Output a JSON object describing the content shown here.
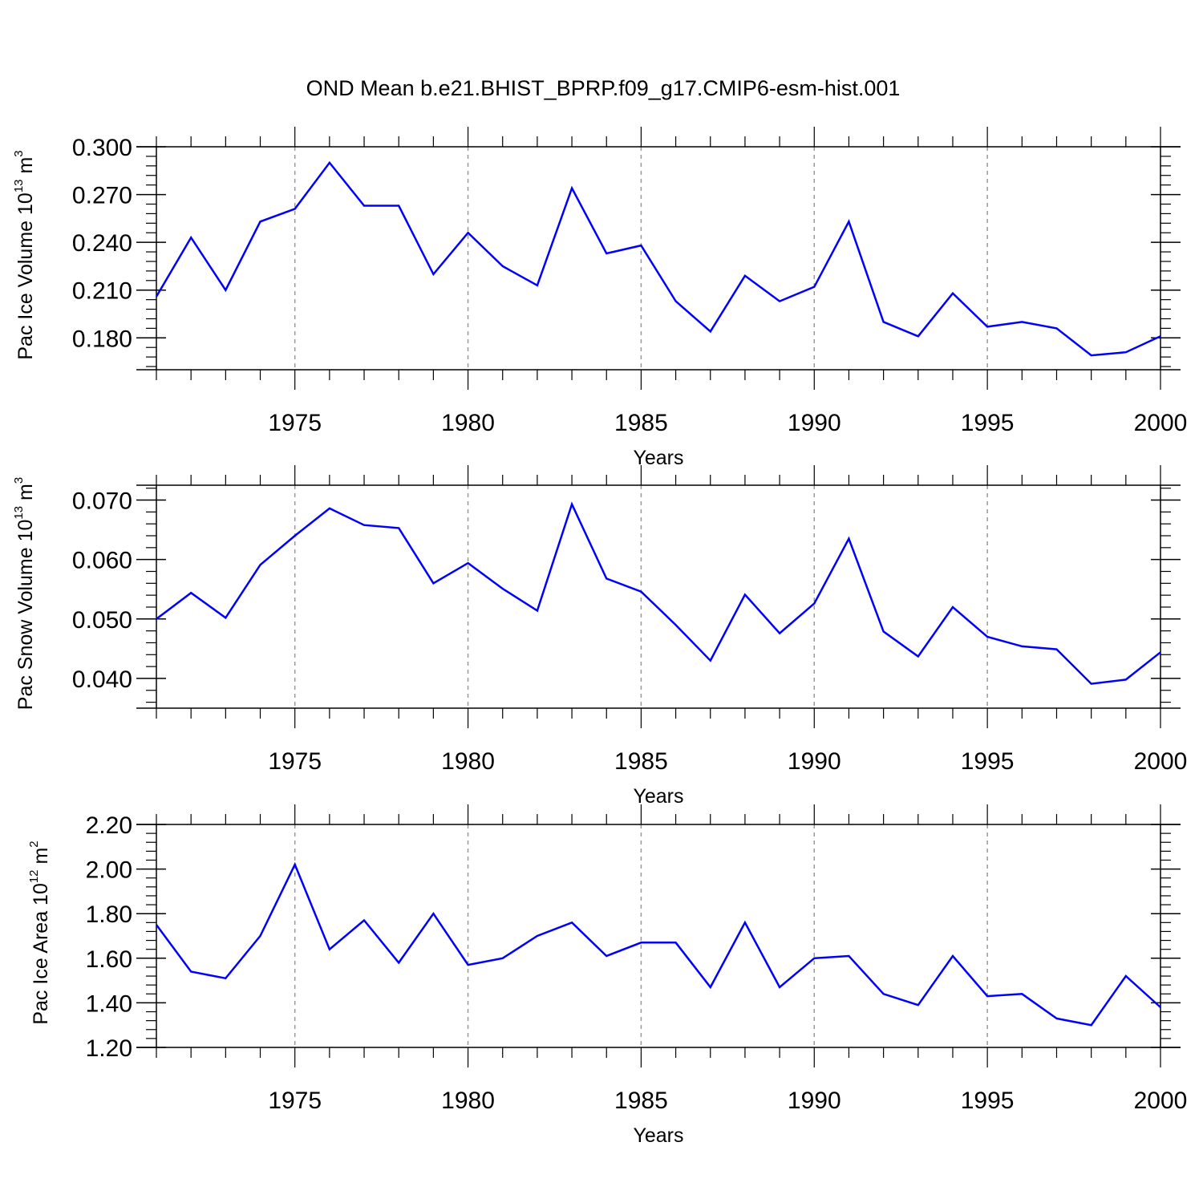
{
  "figure": {
    "title": "OND Mean b.e21.BHIST_BPRP.f09_g17.CMIP6-esm-hist.001"
  },
  "chart_data": [
    {
      "type": "line",
      "xlabel": "Years",
      "ylabel": {
        "text": "Pac Ice Volume 10",
        "exponent": "13",
        "unit": " m",
        "unit_exponent": "3"
      },
      "xlim": [
        1971,
        2000
      ],
      "ylim": [
        0.16,
        0.3
      ],
      "xticks": [
        1975,
        1980,
        1985,
        1990,
        1995,
        2000
      ],
      "xtick_labels": [
        "1975",
        "1980",
        "1985",
        "1990",
        "1995",
        "2000"
      ],
      "yticks": [
        0.18,
        0.21,
        0.24,
        0.27,
        0.3
      ],
      "ytick_labels": [
        "0.180",
        "0.210",
        "0.240",
        "0.270",
        "0.300"
      ],
      "x_minor_step": 1,
      "y_minor_step": 0.006,
      "grid": "vertical-dashed",
      "color": "#0000ff",
      "x": [
        1971,
        1972,
        1973,
        1974,
        1975,
        1976,
        1977,
        1978,
        1979,
        1980,
        1981,
        1982,
        1983,
        1984,
        1985,
        1986,
        1987,
        1988,
        1989,
        1990,
        1991,
        1992,
        1993,
        1994,
        1995,
        1996,
        1997,
        1998,
        1999,
        2000
      ],
      "values": [
        0.206,
        0.243,
        0.21,
        0.253,
        0.261,
        0.29,
        0.263,
        0.263,
        0.22,
        0.246,
        0.225,
        0.213,
        0.274,
        0.233,
        0.238,
        0.203,
        0.184,
        0.219,
        0.203,
        0.212,
        0.253,
        0.19,
        0.181,
        0.208,
        0.187,
        0.19,
        0.186,
        0.169,
        0.171,
        0.181
      ]
    },
    {
      "type": "line",
      "xlabel": "Years",
      "ylabel": {
        "text": "Pac Snow Volume 10",
        "exponent": "13",
        "unit": " m",
        "unit_exponent": "3"
      },
      "xlim": [
        1971,
        2000
      ],
      "ylim": [
        0.035,
        0.0725
      ],
      "xticks": [
        1975,
        1980,
        1985,
        1990,
        1995,
        2000
      ],
      "xtick_labels": [
        "1975",
        "1980",
        "1985",
        "1990",
        "1995",
        "2000"
      ],
      "yticks": [
        0.04,
        0.05,
        0.06,
        0.07
      ],
      "ytick_labels": [
        "0.040",
        "0.050",
        "0.060",
        "0.070"
      ],
      "x_minor_step": 1,
      "y_minor_step": 0.002,
      "grid": "vertical-dashed",
      "color": "#0000ff",
      "x": [
        1971,
        1972,
        1973,
        1974,
        1975,
        1976,
        1977,
        1978,
        1979,
        1980,
        1981,
        1982,
        1983,
        1984,
        1985,
        1986,
        1987,
        1988,
        1989,
        1990,
        1991,
        1992,
        1993,
        1994,
        1995,
        1996,
        1997,
        1998,
        1999,
        2000
      ],
      "values": [
        0.05,
        0.0544,
        0.0502,
        0.0591,
        0.064,
        0.0686,
        0.0658,
        0.0653,
        0.056,
        0.0594,
        0.0551,
        0.0514,
        0.0693,
        0.0568,
        0.0546,
        0.049,
        0.043,
        0.0541,
        0.0476,
        0.0526,
        0.0635,
        0.0479,
        0.0437,
        0.052,
        0.047,
        0.0454,
        0.0449,
        0.0391,
        0.0398,
        0.0444
      ]
    },
    {
      "type": "line",
      "xlabel": "Years",
      "ylabel": {
        "text": "Pac Ice Area 10",
        "exponent": "12",
        "unit": " m",
        "unit_exponent": "2"
      },
      "xlim": [
        1971,
        2000
      ],
      "ylim": [
        1.2,
        2.2
      ],
      "xticks": [
        1975,
        1980,
        1985,
        1990,
        1995,
        2000
      ],
      "xtick_labels": [
        "1975",
        "1980",
        "1985",
        "1990",
        "1995",
        "2000"
      ],
      "yticks": [
        1.2,
        1.4,
        1.6,
        1.8,
        2.0,
        2.2
      ],
      "ytick_labels": [
        "1.20",
        "1.40",
        "1.60",
        "1.80",
        "2.00",
        "2.20"
      ],
      "x_minor_step": 1,
      "y_minor_step": 0.04,
      "grid": "vertical-dashed",
      "color": "#0000ff",
      "x": [
        1971,
        1972,
        1973,
        1974,
        1975,
        1976,
        1977,
        1978,
        1979,
        1980,
        1981,
        1982,
        1983,
        1984,
        1985,
        1986,
        1987,
        1988,
        1989,
        1990,
        1991,
        1992,
        1993,
        1994,
        1995,
        1996,
        1997,
        1998,
        1999,
        2000
      ],
      "values": [
        1.75,
        1.54,
        1.51,
        1.7,
        2.02,
        1.64,
        1.77,
        1.58,
        1.8,
        1.57,
        1.6,
        1.7,
        1.76,
        1.61,
        1.67,
        1.67,
        1.47,
        1.76,
        1.47,
        1.6,
        1.61,
        1.44,
        1.39,
        1.61,
        1.43,
        1.44,
        1.33,
        1.3,
        1.52,
        1.38
      ]
    }
  ]
}
